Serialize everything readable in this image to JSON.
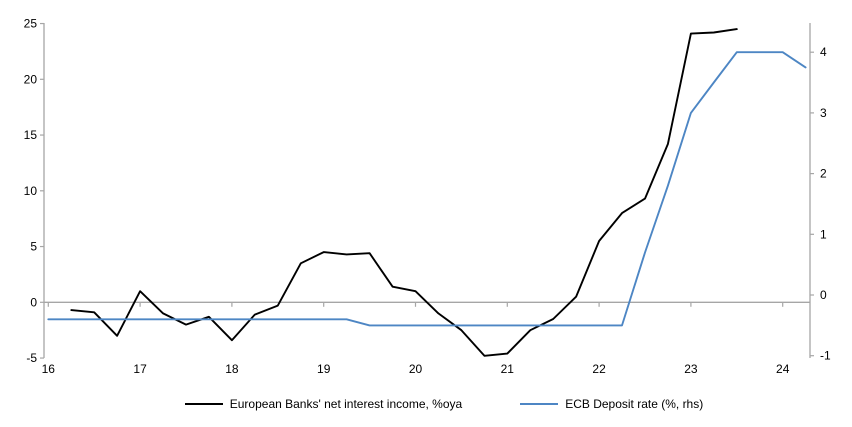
{
  "chart_data": {
    "type": "line",
    "title": "",
    "x_axis": {
      "ticks": [
        16,
        17,
        18,
        19,
        20,
        21,
        22,
        23,
        24
      ],
      "range": [
        16,
        24.3
      ]
    },
    "left_axis": {
      "ticks": [
        25,
        20,
        15,
        10,
        5,
        0,
        -5
      ],
      "range": [
        -5,
        25
      ]
    },
    "right_axis": {
      "ticks": [
        4,
        3,
        2,
        1,
        0,
        -1
      ],
      "range": [
        -1,
        4.45
      ]
    },
    "grid": "zero-line-only",
    "legend_position": "bottom",
    "series": [
      {
        "name": "European Banks' net interest income, %oya",
        "axis": "left",
        "color": "#000000",
        "x": [
          16.25,
          16.5,
          16.75,
          17.0,
          17.25,
          17.5,
          17.75,
          18.0,
          18.25,
          18.5,
          18.75,
          19.0,
          19.25,
          19.5,
          19.75,
          20.0,
          20.25,
          20.5,
          20.75,
          21.0,
          21.25,
          21.5,
          21.75,
          22.0,
          22.25,
          22.5,
          22.75,
          23.0,
          23.25,
          23.5
        ],
        "values": [
          -0.7,
          -0.9,
          -3.0,
          1.0,
          -1.0,
          -2.0,
          -1.3,
          -3.4,
          -1.1,
          -0.3,
          3.5,
          4.5,
          4.3,
          4.4,
          1.4,
          1.0,
          -1.0,
          -2.5,
          -4.8,
          -4.6,
          -2.5,
          -1.5,
          0.5,
          5.5,
          8.0,
          9.3,
          14.2,
          24.1,
          24.2,
          24.5
        ]
      },
      {
        "name": "ECB Deposit rate (%, rhs)",
        "axis": "right",
        "color": "#4d86c4",
        "x": [
          16.0,
          16.25,
          16.5,
          16.75,
          17.0,
          17.25,
          17.5,
          17.75,
          18.0,
          18.25,
          18.5,
          18.75,
          19.0,
          19.25,
          19.5,
          19.75,
          20.0,
          20.25,
          20.5,
          20.75,
          21.0,
          21.25,
          21.5,
          21.75,
          22.0,
          22.25,
          22.5,
          22.75,
          23.0,
          23.25,
          23.5,
          23.75,
          24.0,
          24.25
        ],
        "values": [
          -0.4,
          -0.4,
          -0.4,
          -0.4,
          -0.4,
          -0.4,
          -0.4,
          -0.4,
          -0.4,
          -0.4,
          -0.4,
          -0.4,
          -0.4,
          -0.4,
          -0.5,
          -0.5,
          -0.5,
          -0.5,
          -0.5,
          -0.5,
          -0.5,
          -0.5,
          -0.5,
          -0.5,
          -0.5,
          -0.5,
          0.7,
          1.8,
          3.0,
          3.5,
          4.0,
          4.0,
          4.0,
          3.75
        ]
      }
    ]
  },
  "colors": {
    "axis_gray": "#a6a6a6",
    "text": "#000000",
    "background": "#ffffff",
    "nii_line": "#000000",
    "ecb_line": "#4d86c4"
  }
}
